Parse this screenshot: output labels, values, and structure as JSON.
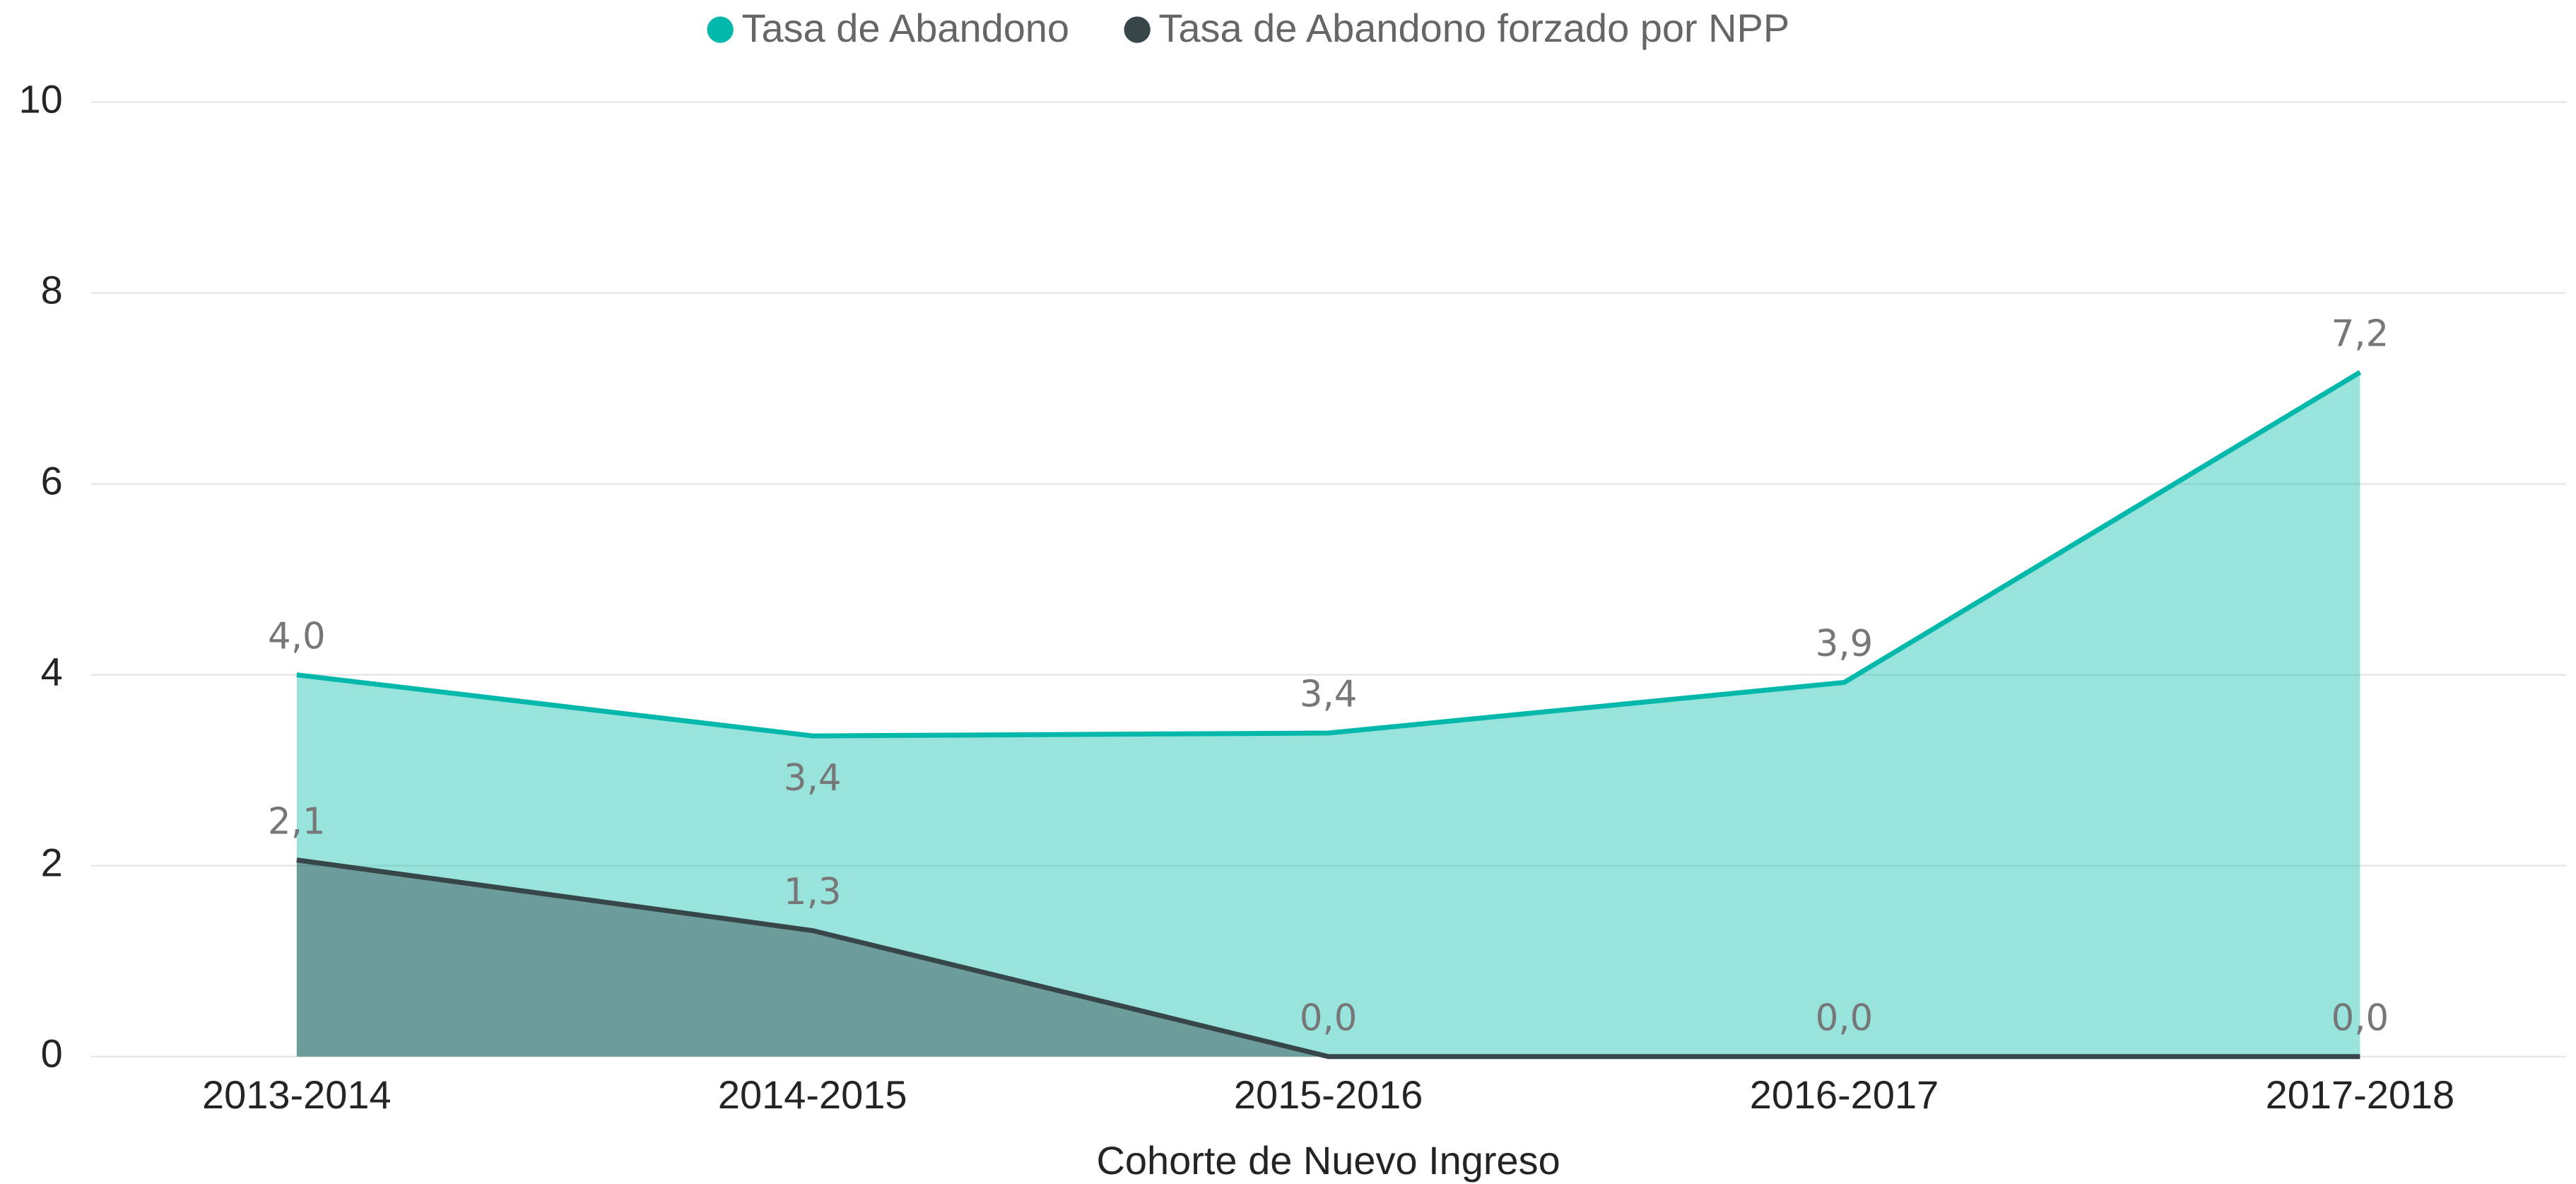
{
  "chart_data": {
    "type": "area",
    "x_label": "Cohorte de Nuevo Ingreso",
    "categories": [
      "2013-2014",
      "2014-2015",
      "2015-2016",
      "2016-2017",
      "2017-2018"
    ],
    "series": [
      {
        "name": "Tasa de Abandono",
        "color": "#01B8AA",
        "values": [
          4.0,
          3.36,
          3.39,
          3.92,
          7.17
        ],
        "value_labels": [
          "4,0",
          "3,4",
          "3,4",
          "3,9",
          "7,2"
        ]
      },
      {
        "name": "Tasa de Abandono forzado por NPP",
        "color": "#374649",
        "values": [
          2.06,
          1.32,
          0,
          0,
          0
        ],
        "value_labels": [
          "2,1",
          "1,3",
          "0,0",
          "0,0",
          "0,0"
        ]
      }
    ],
    "ylim": [
      0,
      10
    ],
    "yticks": [
      0,
      2,
      4,
      6,
      8,
      10
    ],
    "grid": true,
    "legend": "top"
  }
}
